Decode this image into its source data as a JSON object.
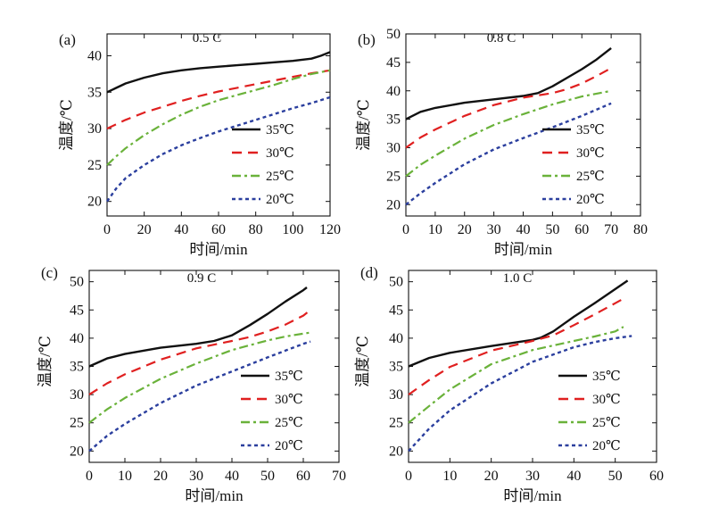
{
  "chart_data": [
    {
      "type": "line",
      "panel_label": "(a)",
      "title": "0.5 C",
      "xlabel": "时间/min",
      "ylabel": "温度/℃",
      "xlim": [
        0,
        120
      ],
      "ylim": [
        18,
        43
      ],
      "xticks": [
        0,
        20,
        40,
        60,
        80,
        100,
        120
      ],
      "yticks": [
        20,
        25,
        30,
        35,
        40
      ],
      "legend_position": "lower-right",
      "series": [
        {
          "name": "35℃",
          "color": "#111111",
          "dash": "solid",
          "x": [
            0,
            10,
            20,
            30,
            40,
            50,
            60,
            70,
            80,
            90,
            100,
            110,
            115,
            120
          ],
          "y": [
            35.0,
            36.2,
            37.0,
            37.6,
            38.0,
            38.3,
            38.5,
            38.7,
            38.9,
            39.1,
            39.3,
            39.6,
            40.0,
            40.5
          ]
        },
        {
          "name": "30℃",
          "color": "#e02020",
          "dash": "dashed",
          "x": [
            0,
            10,
            20,
            30,
            40,
            50,
            60,
            70,
            80,
            90,
            100,
            110,
            120
          ],
          "y": [
            30.0,
            31.2,
            32.2,
            33.0,
            33.8,
            34.5,
            35.1,
            35.6,
            36.1,
            36.6,
            37.1,
            37.6,
            38.0
          ]
        },
        {
          "name": "25℃",
          "color": "#6ab23a",
          "dash": "dashdot",
          "x": [
            0,
            5,
            10,
            20,
            30,
            40,
            50,
            60,
            70,
            80,
            90,
            100,
            110,
            120
          ],
          "y": [
            25.0,
            26.2,
            27.3,
            29.1,
            30.6,
            31.9,
            33.0,
            33.9,
            34.6,
            35.3,
            36.0,
            36.8,
            37.5,
            38.0
          ]
        },
        {
          "name": "20℃",
          "color": "#2b3f9e",
          "dash": "dotted",
          "x": [
            0,
            5,
            10,
            20,
            30,
            40,
            50,
            60,
            70,
            80,
            90,
            100,
            110,
            120
          ],
          "y": [
            20.0,
            21.8,
            23.2,
            25.0,
            26.5,
            27.7,
            28.7,
            29.6,
            30.4,
            31.2,
            32.0,
            32.8,
            33.5,
            34.3
          ]
        }
      ]
    },
    {
      "type": "line",
      "panel_label": "(b)",
      "title": "0.8 C",
      "xlabel": "时间/min",
      "ylabel": "温度/℃",
      "xlim": [
        0,
        80
      ],
      "ylim": [
        18,
        50
      ],
      "xticks": [
        0,
        10,
        20,
        30,
        40,
        50,
        60,
        70,
        80
      ],
      "yticks": [
        20,
        25,
        30,
        35,
        40,
        45,
        50
      ],
      "legend_position": "lower-right",
      "series": [
        {
          "name": "35℃",
          "color": "#111111",
          "dash": "solid",
          "x": [
            0,
            5,
            10,
            20,
            30,
            40,
            45,
            50,
            55,
            60,
            65,
            70
          ],
          "y": [
            35.0,
            36.3,
            37.0,
            37.9,
            38.5,
            39.1,
            39.6,
            40.8,
            42.3,
            43.8,
            45.5,
            47.5
          ]
        },
        {
          "name": "30℃",
          "color": "#e02020",
          "dash": "dashed",
          "x": [
            0,
            5,
            10,
            20,
            30,
            40,
            50,
            55,
            60,
            65,
            70
          ],
          "y": [
            30.0,
            31.8,
            33.2,
            35.6,
            37.5,
            38.8,
            39.6,
            40.3,
            41.3,
            42.6,
            44.0
          ]
        },
        {
          "name": "25℃",
          "color": "#6ab23a",
          "dash": "dashdot",
          "x": [
            0,
            5,
            10,
            20,
            30,
            40,
            50,
            60,
            70
          ],
          "y": [
            25.0,
            27.0,
            28.6,
            31.6,
            34.0,
            35.9,
            37.6,
            39.0,
            40.0
          ]
        },
        {
          "name": "20℃",
          "color": "#2b3f9e",
          "dash": "dotted",
          "x": [
            0,
            5,
            10,
            20,
            30,
            40,
            50,
            60,
            70
          ],
          "y": [
            20.0,
            22.0,
            23.8,
            27.1,
            29.7,
            31.7,
            33.6,
            35.6,
            37.8
          ]
        }
      ]
    },
    {
      "type": "line",
      "panel_label": "(c)",
      "title": "0.9 C",
      "xlabel": "时间/min",
      "ylabel": "温度/℃",
      "xlim": [
        0,
        70
      ],
      "ylim": [
        18,
        52
      ],
      "xticks": [
        0,
        10,
        20,
        30,
        40,
        50,
        60,
        70
      ],
      "yticks": [
        20,
        25,
        30,
        35,
        40,
        45,
        50
      ],
      "legend_position": "lower-right",
      "series": [
        {
          "name": "35℃",
          "color": "#111111",
          "dash": "solid",
          "x": [
            0,
            5,
            10,
            20,
            30,
            35,
            40,
            45,
            50,
            55,
            60,
            61
          ],
          "y": [
            35.0,
            36.4,
            37.2,
            38.3,
            39.0,
            39.5,
            40.5,
            42.3,
            44.3,
            46.5,
            48.5,
            49.0
          ]
        },
        {
          "name": "30℃",
          "color": "#e02020",
          "dash": "dashed",
          "x": [
            0,
            5,
            10,
            20,
            30,
            40,
            45,
            50,
            55,
            60,
            62
          ],
          "y": [
            30.0,
            32.0,
            33.6,
            36.2,
            38.2,
            39.5,
            40.2,
            41.2,
            42.4,
            44.0,
            45.0
          ]
        },
        {
          "name": "25℃",
          "color": "#6ab23a",
          "dash": "dashdot",
          "x": [
            0,
            5,
            10,
            20,
            30,
            40,
            50,
            55,
            60,
            62
          ],
          "y": [
            25.0,
            27.4,
            29.4,
            32.8,
            35.5,
            37.9,
            39.6,
            40.3,
            40.8,
            41.0
          ]
        },
        {
          "name": "20℃",
          "color": "#2b3f9e",
          "dash": "dotted",
          "x": [
            0,
            5,
            10,
            20,
            30,
            40,
            50,
            55,
            60,
            62
          ],
          "y": [
            20.0,
            22.7,
            24.8,
            28.5,
            31.6,
            34.1,
            36.6,
            37.8,
            39.0,
            39.4
          ]
        }
      ]
    },
    {
      "type": "line",
      "panel_label": "(d)",
      "title": "1.0 C",
      "xlabel": "时间/min",
      "ylabel": "温度/℃",
      "xlim": [
        0,
        60
      ],
      "ylim": [
        18,
        52
      ],
      "xticks": [
        0,
        10,
        20,
        30,
        40,
        50,
        60
      ],
      "yticks": [
        20,
        25,
        30,
        35,
        40,
        45,
        50
      ],
      "legend_position": "lower-right",
      "series": [
        {
          "name": "35℃",
          "color": "#111111",
          "dash": "solid",
          "x": [
            0,
            5,
            10,
            20,
            30,
            32,
            35,
            40,
            45,
            50,
            53
          ],
          "y": [
            35.0,
            36.5,
            37.4,
            38.6,
            39.7,
            40.1,
            41.2,
            43.8,
            46.2,
            48.7,
            50.2
          ]
        },
        {
          "name": "30℃",
          "color": "#e02020",
          "dash": "dashed",
          "x": [
            0,
            5,
            10,
            20,
            30,
            35,
            40,
            45,
            50,
            52
          ],
          "y": [
            30.0,
            32.6,
            34.9,
            37.8,
            39.5,
            40.5,
            42.3,
            44.2,
            46.2,
            47.0
          ]
        },
        {
          "name": "25℃",
          "color": "#6ab23a",
          "dash": "dashdot",
          "x": [
            0,
            5,
            10,
            20,
            30,
            40,
            45,
            50,
            52
          ],
          "y": [
            25.0,
            28.0,
            30.9,
            35.4,
            37.9,
            39.5,
            40.3,
            41.2,
            42.0
          ]
        },
        {
          "name": "20℃",
          "color": "#2b3f9e",
          "dash": "dotted",
          "x": [
            0,
            5,
            10,
            20,
            30,
            40,
            45,
            50,
            54
          ],
          "y": [
            20.0,
            24.0,
            27.2,
            32.0,
            35.8,
            38.4,
            39.3,
            40.0,
            40.4
          ]
        }
      ]
    }
  ]
}
